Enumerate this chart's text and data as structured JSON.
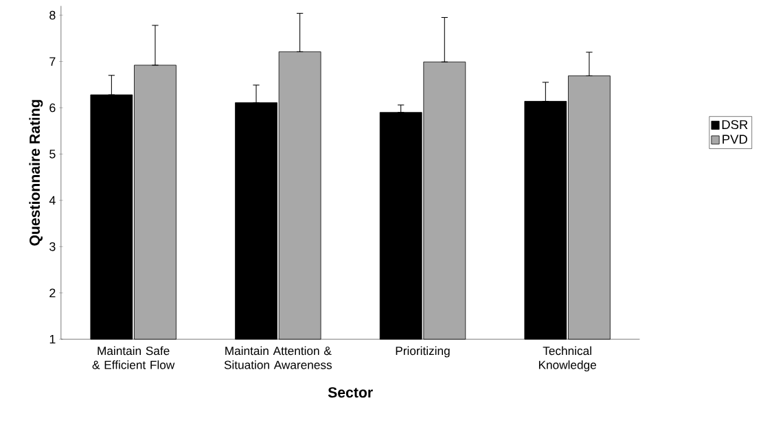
{
  "chart_data": {
    "type": "bar",
    "xlabel": "Sector",
    "ylabel": "Questionnaire Rating",
    "categories": [
      "Maintain Safe & Efficient Flow",
      "Maintain Attention & Situation Awareness",
      "Prioritizing",
      "Technical Knowledge"
    ],
    "series": [
      {
        "name": "DSR",
        "color": "#000000",
        "values": [
          6.28,
          6.11,
          5.9,
          6.14
        ],
        "errors": [
          [
            6.28,
            6.7
          ],
          [
            6.11,
            6.49
          ],
          [
            5.9,
            6.06
          ],
          [
            6.14,
            6.55
          ]
        ]
      },
      {
        "name": "PVD",
        "color": "#a8a8a8",
        "values": [
          6.92,
          7.21,
          6.99,
          6.69
        ],
        "errors": [
          [
            6.92,
            7.78
          ],
          [
            7.21,
            8.04
          ],
          [
            6.99,
            7.95
          ],
          [
            6.69,
            7.2
          ]
        ]
      }
    ],
    "ylim": [
      1,
      8.2
    ],
    "yticks": [
      1,
      2,
      3,
      4,
      5,
      6,
      7,
      8
    ],
    "grid": false,
    "legend": "right"
  }
}
